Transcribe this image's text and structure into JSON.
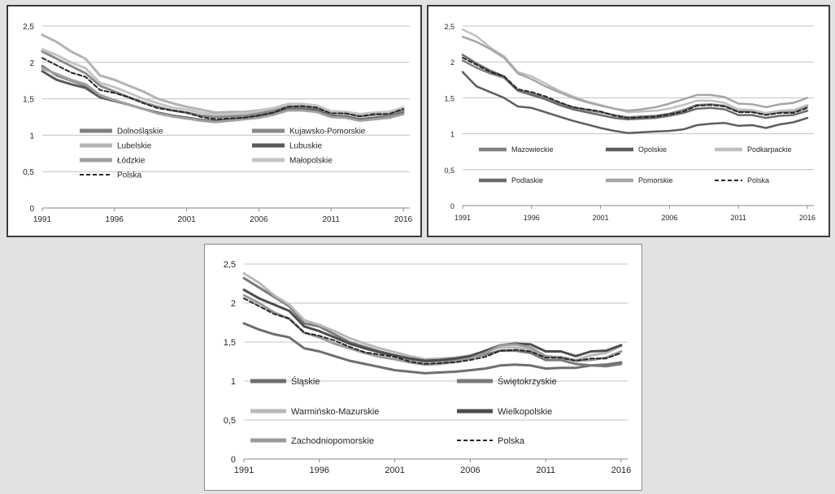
{
  "chart_data": [
    {
      "type": "line",
      "x": [
        1991,
        1992,
        1993,
        1994,
        1995,
        1996,
        1997,
        1998,
        1999,
        2000,
        2001,
        2002,
        2003,
        2004,
        2005,
        2006,
        2007,
        2008,
        2009,
        2010,
        2011,
        2012,
        2013,
        2014,
        2015,
        2016
      ],
      "xticks": [
        "1991",
        "1996",
        "2001",
        "2006",
        "2011",
        "2016"
      ],
      "yticks": [
        "0",
        "0,5",
        "1",
        "1,5",
        "2",
        "2,5"
      ],
      "ylim": [
        0,
        2.5
      ],
      "grid": true,
      "legend_position": "inside-bottom",
      "series": [
        {
          "name": "Dolnośląskie",
          "color": "#7f7f7f",
          "dashed": false,
          "values": [
            1.95,
            1.82,
            1.75,
            1.68,
            1.55,
            1.48,
            1.42,
            1.36,
            1.3,
            1.26,
            1.23,
            1.21,
            1.2,
            1.22,
            1.24,
            1.27,
            1.32,
            1.38,
            1.37,
            1.35,
            1.27,
            1.26,
            1.22,
            1.24,
            1.26,
            1.33
          ]
        },
        {
          "name": "Kujawsko-Pomorskie",
          "color": "#8a8a8a",
          "dashed": false,
          "values": [
            2.15,
            2.05,
            1.95,
            1.85,
            1.68,
            1.6,
            1.52,
            1.45,
            1.39,
            1.34,
            1.31,
            1.27,
            1.25,
            1.26,
            1.27,
            1.3,
            1.34,
            1.4,
            1.4,
            1.38,
            1.31,
            1.3,
            1.26,
            1.28,
            1.29,
            1.35
          ]
        },
        {
          "name": "Lubelskie",
          "color": "#b3b3b3",
          "dashed": false,
          "values": [
            2.38,
            2.28,
            2.15,
            2.05,
            1.82,
            1.76,
            1.68,
            1.6,
            1.5,
            1.44,
            1.39,
            1.35,
            1.31,
            1.32,
            1.32,
            1.34,
            1.37,
            1.42,
            1.42,
            1.4,
            1.32,
            1.32,
            1.28,
            1.3,
            1.31,
            1.38
          ]
        },
        {
          "name": "Lubuskie",
          "color": "#595959",
          "dashed": false,
          "values": [
            1.88,
            1.76,
            1.7,
            1.65,
            1.52,
            1.47,
            1.42,
            1.36,
            1.31,
            1.27,
            1.24,
            1.21,
            1.19,
            1.21,
            1.23,
            1.26,
            1.3,
            1.35,
            1.35,
            1.34,
            1.26,
            1.25,
            1.21,
            1.23,
            1.24,
            1.3
          ]
        },
        {
          "name": "Łódzkie",
          "color": "#a0a0a0",
          "dashed": false,
          "values": [
            1.92,
            1.84,
            1.76,
            1.7,
            1.55,
            1.48,
            1.42,
            1.36,
            1.3,
            1.26,
            1.23,
            1.2,
            1.18,
            1.2,
            1.22,
            1.24,
            1.28,
            1.34,
            1.34,
            1.32,
            1.25,
            1.24,
            1.2,
            1.22,
            1.24,
            1.29
          ]
        },
        {
          "name": "Małopolskie",
          "color": "#c4c4c4",
          "dashed": false,
          "values": [
            2.18,
            2.1,
            2.0,
            1.92,
            1.72,
            1.66,
            1.58,
            1.5,
            1.44,
            1.38,
            1.35,
            1.31,
            1.28,
            1.29,
            1.3,
            1.33,
            1.37,
            1.43,
            1.43,
            1.41,
            1.33,
            1.32,
            1.29,
            1.31,
            1.32,
            1.38
          ]
        },
        {
          "name": "Polska",
          "color": "#262626",
          "dashed": true,
          "values": [
            2.06,
            1.96,
            1.86,
            1.8,
            1.62,
            1.58,
            1.52,
            1.44,
            1.37,
            1.34,
            1.31,
            1.25,
            1.22,
            1.23,
            1.24,
            1.27,
            1.31,
            1.39,
            1.4,
            1.38,
            1.3,
            1.3,
            1.26,
            1.29,
            1.29,
            1.36
          ]
        }
      ]
    },
    {
      "type": "line",
      "x": [
        1991,
        1992,
        1993,
        1994,
        1995,
        1996,
        1997,
        1998,
        1999,
        2000,
        2001,
        2002,
        2003,
        2004,
        2005,
        2006,
        2007,
        2008,
        2009,
        2010,
        2011,
        2012,
        2013,
        2014,
        2015,
        2016
      ],
      "xticks": [
        "1991",
        "1996",
        "2001",
        "2006",
        "2011",
        "2016"
      ],
      "yticks": [
        "0",
        "0,5",
        "1",
        "1,5",
        "2",
        "2,5"
      ],
      "ylim": [
        0,
        2.5
      ],
      "grid": true,
      "legend_position": "inside-bottom",
      "series": [
        {
          "name": "Mazowieckie",
          "color": "#7f7f7f",
          "dashed": false,
          "values": [
            2.02,
            1.92,
            1.84,
            1.78,
            1.6,
            1.56,
            1.5,
            1.43,
            1.37,
            1.33,
            1.3,
            1.26,
            1.23,
            1.24,
            1.25,
            1.28,
            1.33,
            1.4,
            1.41,
            1.39,
            1.31,
            1.31,
            1.27,
            1.3,
            1.31,
            1.38
          ]
        },
        {
          "name": "Opolskie",
          "color": "#5e5e5e",
          "dashed": false,
          "values": [
            1.86,
            1.66,
            1.58,
            1.5,
            1.38,
            1.36,
            1.3,
            1.24,
            1.18,
            1.13,
            1.08,
            1.04,
            1.01,
            1.02,
            1.03,
            1.04,
            1.06,
            1.12,
            1.14,
            1.15,
            1.11,
            1.12,
            1.08,
            1.13,
            1.16,
            1.22
          ]
        },
        {
          "name": "Podkarpackie",
          "color": "#c0c0c0",
          "dashed": false,
          "values": [
            2.45,
            2.36,
            2.2,
            2.08,
            1.86,
            1.8,
            1.7,
            1.6,
            1.52,
            1.45,
            1.4,
            1.35,
            1.3,
            1.31,
            1.32,
            1.35,
            1.4,
            1.46,
            1.46,
            1.43,
            1.34,
            1.33,
            1.29,
            1.32,
            1.33,
            1.4
          ]
        },
        {
          "name": "Podlaskie",
          "color": "#6b6b6b",
          "dashed": false,
          "values": [
            2.1,
            1.98,
            1.88,
            1.8,
            1.6,
            1.54,
            1.48,
            1.4,
            1.34,
            1.3,
            1.26,
            1.22,
            1.2,
            1.21,
            1.22,
            1.25,
            1.29,
            1.35,
            1.36,
            1.34,
            1.26,
            1.26,
            1.22,
            1.25,
            1.26,
            1.32
          ]
        },
        {
          "name": "Pomorskie",
          "color": "#a6a6a6",
          "dashed": false,
          "values": [
            2.35,
            2.28,
            2.18,
            2.06,
            1.84,
            1.76,
            1.66,
            1.58,
            1.5,
            1.44,
            1.39,
            1.35,
            1.32,
            1.34,
            1.37,
            1.42,
            1.48,
            1.54,
            1.54,
            1.51,
            1.42,
            1.41,
            1.37,
            1.41,
            1.43,
            1.5
          ]
        },
        {
          "name": "Polska",
          "color": "#262626",
          "dashed": true,
          "values": [
            2.06,
            1.96,
            1.86,
            1.8,
            1.62,
            1.58,
            1.52,
            1.44,
            1.37,
            1.34,
            1.31,
            1.25,
            1.22,
            1.23,
            1.24,
            1.27,
            1.31,
            1.39,
            1.4,
            1.38,
            1.3,
            1.3,
            1.26,
            1.29,
            1.29,
            1.36
          ]
        }
      ]
    },
    {
      "type": "line",
      "x": [
        1991,
        1992,
        1993,
        1994,
        1995,
        1996,
        1997,
        1998,
        1999,
        2000,
        2001,
        2002,
        2003,
        2004,
        2005,
        2006,
        2007,
        2008,
        2009,
        2010,
        2011,
        2012,
        2013,
        2014,
        2015,
        2016
      ],
      "xticks": [
        "1991",
        "1996",
        "2001",
        "2006",
        "2011",
        "2016"
      ],
      "yticks": [
        "0",
        "0,5",
        "1",
        "1,5",
        "2",
        "2,5"
      ],
      "ylim": [
        0,
        2.5
      ],
      "grid": true,
      "legend_position": "inside-bottom",
      "series": [
        {
          "name": "Śląskie",
          "color": "#6e6e6e",
          "dashed": false,
          "values": [
            1.74,
            1.66,
            1.6,
            1.56,
            1.42,
            1.38,
            1.32,
            1.26,
            1.22,
            1.18,
            1.14,
            1.12,
            1.1,
            1.11,
            1.12,
            1.14,
            1.16,
            1.2,
            1.21,
            1.2,
            1.16,
            1.17,
            1.17,
            1.2,
            1.21,
            1.24
          ]
        },
        {
          "name": "Świętokrzyskie",
          "color": "#7a7a7a",
          "dashed": false,
          "values": [
            2.32,
            2.2,
            2.08,
            1.96,
            1.74,
            1.7,
            1.6,
            1.5,
            1.44,
            1.38,
            1.33,
            1.28,
            1.25,
            1.26,
            1.27,
            1.3,
            1.34,
            1.39,
            1.39,
            1.36,
            1.27,
            1.27,
            1.22,
            1.2,
            1.19,
            1.22
          ]
        },
        {
          "name": "Warmińsko-Mazurskie",
          "color": "#b8b8b8",
          "dashed": false,
          "values": [
            2.38,
            2.26,
            2.1,
            1.98,
            1.78,
            1.72,
            1.64,
            1.55,
            1.48,
            1.42,
            1.37,
            1.32,
            1.28,
            1.29,
            1.3,
            1.33,
            1.38,
            1.43,
            1.43,
            1.4,
            1.31,
            1.31,
            1.27,
            1.33,
            1.36,
            1.45
          ]
        },
        {
          "name": "Wielkopolskie",
          "color": "#4d4d4d",
          "dashed": false,
          "values": [
            2.17,
            2.06,
            1.98,
            1.9,
            1.7,
            1.64,
            1.56,
            1.48,
            1.42,
            1.37,
            1.33,
            1.29,
            1.26,
            1.27,
            1.29,
            1.32,
            1.39,
            1.46,
            1.48,
            1.47,
            1.38,
            1.38,
            1.32,
            1.38,
            1.39,
            1.46
          ]
        },
        {
          "name": "Zachodniopomorskie",
          "color": "#9a9a9a",
          "dashed": false,
          "values": [
            2.1,
            2.0,
            1.88,
            1.8,
            1.62,
            1.56,
            1.48,
            1.42,
            1.36,
            1.31,
            1.28,
            1.24,
            1.21,
            1.22,
            1.25,
            1.29,
            1.36,
            1.46,
            1.47,
            1.43,
            1.32,
            1.3,
            1.26,
            1.27,
            1.3,
            1.38
          ]
        },
        {
          "name": "Polska",
          "color": "#262626",
          "dashed": true,
          "values": [
            2.06,
            1.96,
            1.86,
            1.8,
            1.62,
            1.58,
            1.52,
            1.44,
            1.37,
            1.34,
            1.31,
            1.25,
            1.22,
            1.23,
            1.24,
            1.27,
            1.31,
            1.39,
            1.4,
            1.38,
            1.3,
            1.3,
            1.26,
            1.29,
            1.29,
            1.36
          ]
        }
      ]
    }
  ]
}
